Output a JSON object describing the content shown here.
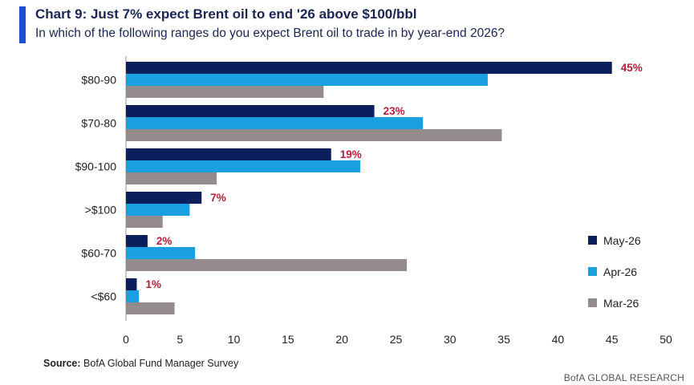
{
  "header": {
    "title": "Chart 9: Just 7% expect Brent oil to end '26 above $100/bbl",
    "subtitle": "In which of the following ranges do you expect Brent oil to trade in by year-end 2026?"
  },
  "footer": {
    "source_label": "Source:",
    "source_text": "BofA Global Fund Manager Survey",
    "brand": "BofA GLOBAL RESEARCH"
  },
  "chart_data": {
    "type": "bar",
    "orientation": "horizontal",
    "categories": [
      "$80-90",
      "$70-80",
      "$90-100",
      ">$100",
      "$60-70",
      "<$60"
    ],
    "series": [
      {
        "name": "May-26",
        "color": "#0b1f5c",
        "values": [
          45,
          23,
          19,
          7,
          2,
          1
        ]
      },
      {
        "name": "Apr-26",
        "color": "#1a9fe0",
        "values": [
          33.5,
          27.5,
          21.7,
          5.9,
          6.4,
          1.2
        ]
      },
      {
        "name": "Mar-26",
        "color": "#948c8c",
        "values": [
          18.3,
          34.8,
          8.4,
          3.4,
          26,
          4.5
        ]
      }
    ],
    "data_labels": {
      "series": "May-26",
      "labels": [
        "45%",
        "23%",
        "19%",
        "7%",
        "2%",
        "1%"
      ],
      "color": "#b0213a"
    },
    "xlim": [
      0,
      50
    ],
    "xticks": [
      0,
      5,
      10,
      15,
      20,
      25,
      30,
      35,
      40,
      45,
      50
    ],
    "grid": false,
    "legend_position": "right"
  }
}
